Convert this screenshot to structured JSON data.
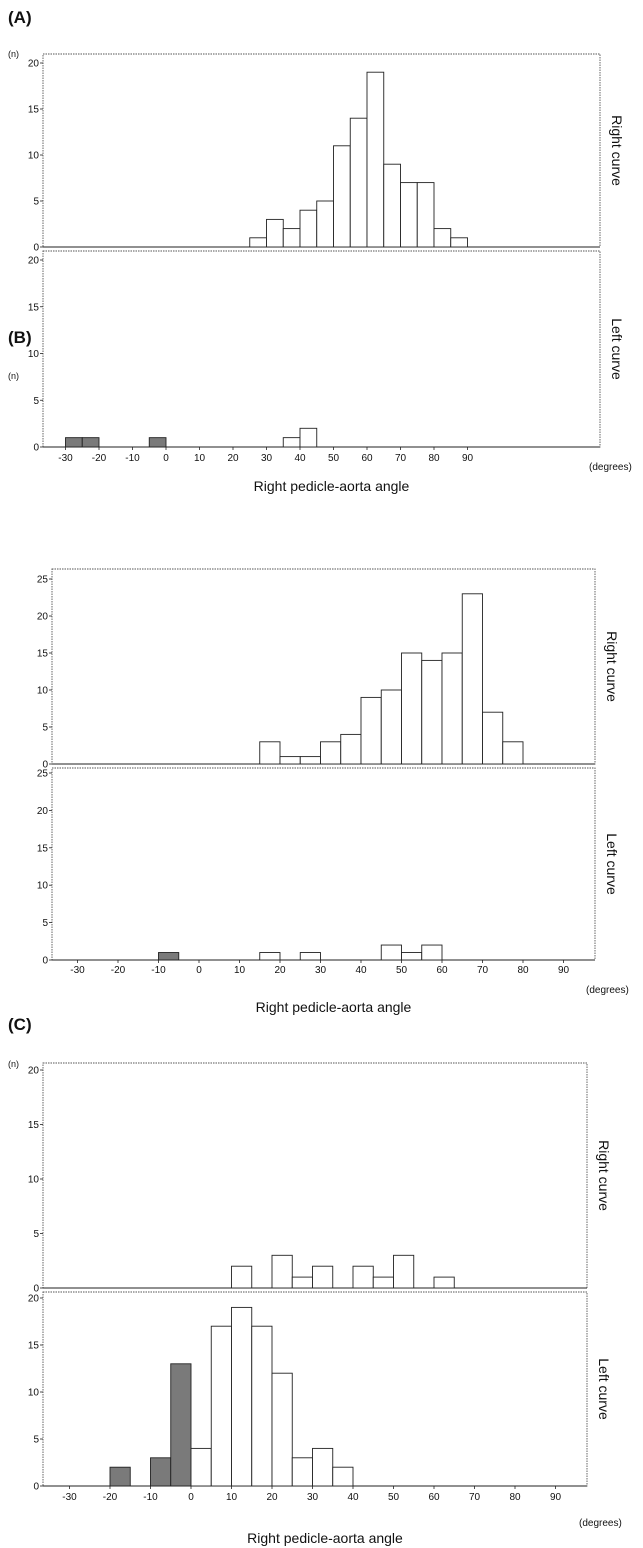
{
  "colors": {
    "negative_bar": "#7a7a7a",
    "positive_bar": "#ffffff",
    "outline": "#222222",
    "frame": "#555555"
  },
  "chart_data": [
    {
      "type": "bar",
      "panel_label": "(A)",
      "xlabel": "Right pedicle-aorta angle",
      "x_units": "(degrees)",
      "y_units": "(n)",
      "bin_width": 5,
      "xlim": [
        -35,
        95
      ],
      "ylim": [
        0,
        20
      ],
      "x_ticks": [
        -30,
        -20,
        -10,
        0,
        10,
        20,
        30,
        40,
        50,
        60,
        70,
        80,
        90
      ],
      "y_ticks": [
        0,
        5,
        10,
        15,
        20
      ],
      "series": [
        {
          "name": "Right curve",
          "bins": [
            {
              "x": 25,
              "n": 1
            },
            {
              "x": 30,
              "n": 3
            },
            {
              "x": 35,
              "n": 2
            },
            {
              "x": 40,
              "n": 4
            },
            {
              "x": 45,
              "n": 5
            },
            {
              "x": 50,
              "n": 11
            },
            {
              "x": 55,
              "n": 14
            },
            {
              "x": 60,
              "n": 19
            },
            {
              "x": 65,
              "n": 9
            },
            {
              "x": 70,
              "n": 7
            },
            {
              "x": 75,
              "n": 7
            },
            {
              "x": 80,
              "n": 2
            },
            {
              "x": 85,
              "n": 1
            }
          ]
        },
        {
          "name": "Left curve",
          "bins": [
            {
              "x": -30,
              "n": 1
            },
            {
              "x": -25,
              "n": 1
            },
            {
              "x": -5,
              "n": 1
            },
            {
              "x": 35,
              "n": 1
            },
            {
              "x": 40,
              "n": 2
            }
          ]
        }
      ]
    },
    {
      "type": "bar",
      "panel_label": "(B)",
      "xlabel": "Right pedicle-aorta angle",
      "x_units": "(degrees)",
      "y_units": "(n)",
      "bin_width": 5,
      "xlim": [
        -35,
        95
      ],
      "ylim": [
        0,
        25
      ],
      "x_ticks": [
        -30,
        -20,
        -10,
        0,
        10,
        20,
        30,
        40,
        50,
        60,
        70,
        80,
        90
      ],
      "y_ticks": [
        0,
        5,
        10,
        15,
        20,
        25
      ],
      "series": [
        {
          "name": "Right curve",
          "bins": [
            {
              "x": 15,
              "n": 3
            },
            {
              "x": 20,
              "n": 1
            },
            {
              "x": 25,
              "n": 1
            },
            {
              "x": 30,
              "n": 3
            },
            {
              "x": 35,
              "n": 4
            },
            {
              "x": 40,
              "n": 9
            },
            {
              "x": 45,
              "n": 10
            },
            {
              "x": 50,
              "n": 15
            },
            {
              "x": 55,
              "n": 14
            },
            {
              "x": 60,
              "n": 15
            },
            {
              "x": 65,
              "n": 23
            },
            {
              "x": 70,
              "n": 7
            },
            {
              "x": 75,
              "n": 3
            }
          ]
        },
        {
          "name": "Left curve",
          "bins": [
            {
              "x": -10,
              "n": 1
            },
            {
              "x": 15,
              "n": 1
            },
            {
              "x": 25,
              "n": 1
            },
            {
              "x": 45,
              "n": 2
            },
            {
              "x": 50,
              "n": 1
            },
            {
              "x": 55,
              "n": 2
            }
          ]
        }
      ]
    },
    {
      "type": "bar",
      "panel_label": "(C)",
      "xlabel": "Right pedicle-aorta angle",
      "x_units": "(degrees)",
      "y_units": "(n)",
      "bin_width": 5,
      "xlim": [
        -35,
        95
      ],
      "ylim": [
        0,
        20
      ],
      "x_ticks": [
        -30,
        -20,
        -10,
        0,
        10,
        20,
        30,
        40,
        50,
        60,
        70,
        80,
        90
      ],
      "y_ticks": [
        0,
        5,
        10,
        15,
        20
      ],
      "series": [
        {
          "name": "Right curve",
          "bins": [
            {
              "x": 10,
              "n": 2
            },
            {
              "x": 20,
              "n": 3
            },
            {
              "x": 25,
              "n": 1
            },
            {
              "x": 30,
              "n": 2
            },
            {
              "x": 40,
              "n": 2
            },
            {
              "x": 45,
              "n": 1
            },
            {
              "x": 50,
              "n": 3
            },
            {
              "x": 60,
              "n": 1
            }
          ]
        },
        {
          "name": "Left curve",
          "bins": [
            {
              "x": -20,
              "n": 2
            },
            {
              "x": -10,
              "n": 3
            },
            {
              "x": -5,
              "n": 13
            },
            {
              "x": 0,
              "n": 4
            },
            {
              "x": 5,
              "n": 17
            },
            {
              "x": 10,
              "n": 19
            },
            {
              "x": 15,
              "n": 17
            },
            {
              "x": 20,
              "n": 12
            },
            {
              "x": 25,
              "n": 3
            },
            {
              "x": 30,
              "n": 4
            },
            {
              "x": 35,
              "n": 2
            }
          ]
        }
      ]
    }
  ]
}
